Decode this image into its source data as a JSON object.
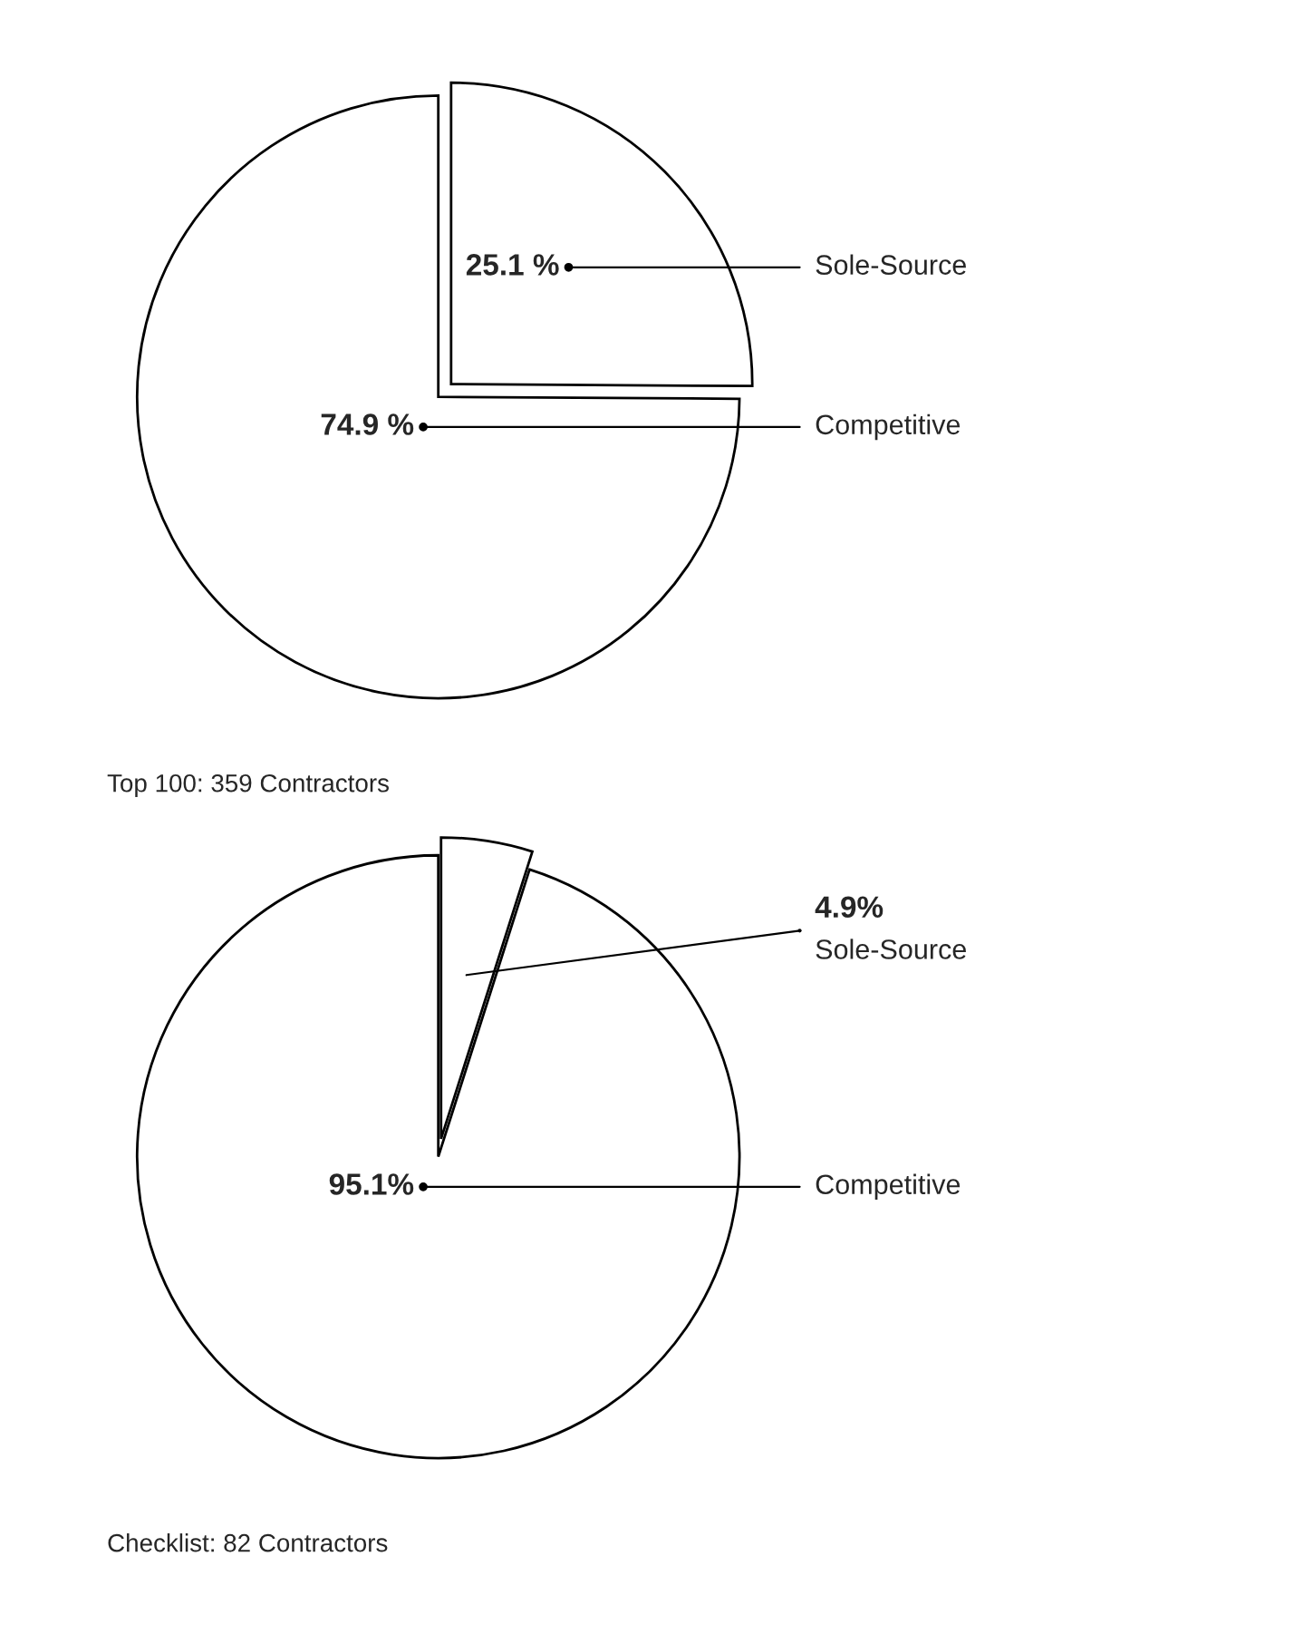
{
  "chart_data": [
    {
      "type": "pie",
      "title": "Top 100: 359 Contractors",
      "categories": [
        "Sole-Source",
        "Competitive"
      ],
      "values": [
        25.1,
        74.9
      ],
      "colors": [
        "#ffffff",
        "#ffffff"
      ],
      "value_labels": [
        "25.1 %",
        "74.9 %"
      ]
    },
    {
      "type": "pie",
      "title": "Checklist: 82 Contractors",
      "categories": [
        "Sole-Source",
        "Competitive"
      ],
      "values": [
        4.9,
        95.1
      ],
      "colors": [
        "#ffffff",
        "#ffffff"
      ],
      "value_labels": [
        "4.9%",
        "95.1%"
      ]
    }
  ]
}
